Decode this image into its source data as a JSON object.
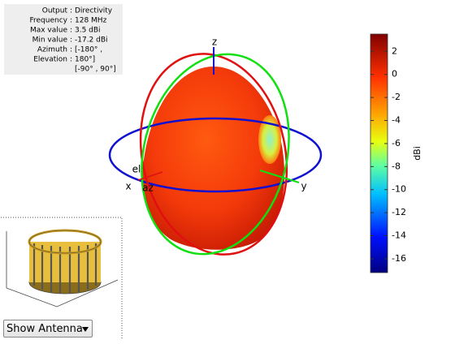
{
  "info": {
    "rows": [
      [
        "Output",
        ":",
        "Directivity"
      ],
      [
        "Frequency",
        ":",
        "128 MHz"
      ],
      [
        "Max value",
        ":",
        "3.5 dBi"
      ],
      [
        "Min value",
        ":",
        "-17.2 dBi"
      ],
      [
        "Azimuth",
        ":",
        "[-180° ,"
      ],
      [
        "Elevation",
        ":",
        "180°]"
      ]
    ],
    "continuation": "[-90° , 90°]"
  },
  "axes": {
    "z": "z",
    "y": "y",
    "x": "x",
    "el": "el",
    "az": "az"
  },
  "colorbar": {
    "label": "dBi",
    "lim": [
      -17.2,
      3.5
    ],
    "ticks": [
      2,
      0,
      -2,
      -4,
      -6,
      -8,
      -10,
      -12,
      -14,
      -16
    ]
  },
  "dropdown": {
    "label": "Show Antenna"
  }
}
